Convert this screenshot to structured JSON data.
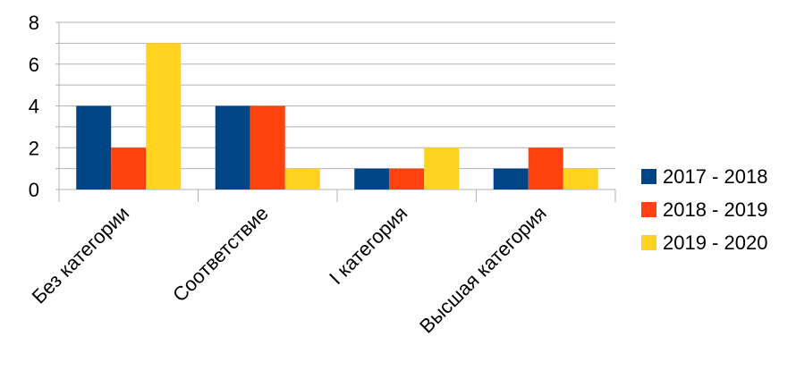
{
  "chart_data": {
    "type": "bar",
    "title": "",
    "xlabel": "",
    "ylabel": "",
    "categories": [
      "Без категории",
      "Соответствие",
      "I категория",
      "Высшая категория"
    ],
    "series": [
      {
        "name": "2017 - 2018",
        "color": "#004586",
        "values": [
          4,
          4,
          1,
          1
        ]
      },
      {
        "name": "2018 - 2019",
        "color": "#ff420e",
        "values": [
          2,
          4,
          1,
          2
        ]
      },
      {
        "name": "2019 - 2020",
        "color": "#ffd320",
        "values": [
          7,
          1,
          2,
          1
        ]
      }
    ],
    "ylim": [
      0,
      8
    ],
    "yticks": [
      "0",
      "2",
      "4",
      "6",
      "8"
    ],
    "grid": true,
    "legend_position": "right"
  }
}
